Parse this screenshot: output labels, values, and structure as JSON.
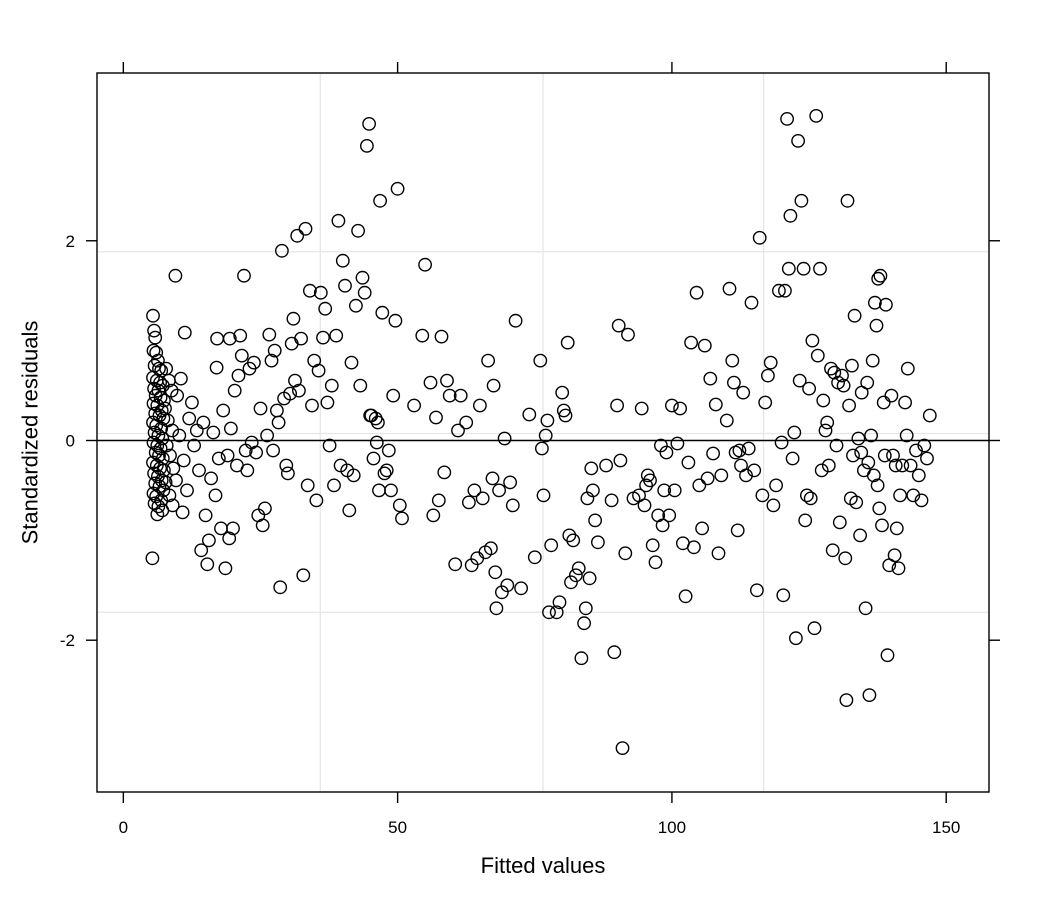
{
  "chart_data": {
    "type": "scatter",
    "title": "",
    "xlabel": "Fitted values",
    "ylabel": "Standardized residuals",
    "xlim": [
      -4.8,
      157.8
    ],
    "ylim": [
      -3.52,
      3.68
    ],
    "x_ticks": [
      0,
      50,
      100,
      150
    ],
    "x_tick_labels": [
      "0",
      "50",
      "100",
      "150"
    ],
    "y_ticks": [
      -2,
      0,
      2
    ],
    "y_tick_labels": [
      "-2",
      "0",
      "2"
    ],
    "reference_line_y": 0,
    "grid": {
      "x": [
        35.9,
        76.5,
        116.7
      ],
      "y": [
        -1.72,
        0.07,
        1.89
      ]
    },
    "points": [
      [
        5.4,
        1.25
      ],
      [
        5.6,
        1.1
      ],
      [
        5.8,
        1.03
      ],
      [
        5.5,
        0.9
      ],
      [
        6.0,
        0.88
      ],
      [
        6.3,
        0.8
      ],
      [
        5.7,
        0.75
      ],
      [
        6.5,
        0.72
      ],
      [
        6.9,
        0.7
      ],
      [
        5.4,
        0.63
      ],
      [
        6.1,
        0.6
      ],
      [
        6.7,
        0.58
      ],
      [
        7.2,
        0.55
      ],
      [
        5.6,
        0.52
      ],
      [
        6.4,
        0.5
      ],
      [
        5.9,
        0.45
      ],
      [
        6.8,
        0.43
      ],
      [
        7.4,
        0.4
      ],
      [
        5.5,
        0.37
      ],
      [
        6.2,
        0.35
      ],
      [
        7.0,
        0.3
      ],
      [
        5.8,
        0.27
      ],
      [
        6.6,
        0.25
      ],
      [
        7.3,
        0.22
      ],
      [
        5.4,
        0.18
      ],
      [
        6.0,
        0.15
      ],
      [
        6.9,
        0.12
      ],
      [
        5.7,
        0.08
      ],
      [
        6.4,
        0.05
      ],
      [
        7.1,
        0.02
      ],
      [
        5.5,
        -0.02
      ],
      [
        6.2,
        -0.05
      ],
      [
        6.8,
        -0.08
      ],
      [
        5.9,
        -0.12
      ],
      [
        6.5,
        -0.15
      ],
      [
        7.2,
        -0.18
      ],
      [
        5.4,
        -0.22
      ],
      [
        6.1,
        -0.25
      ],
      [
        6.7,
        -0.28
      ],
      [
        7.4,
        -0.3
      ],
      [
        5.6,
        -0.33
      ],
      [
        6.3,
        -0.36
      ],
      [
        7.0,
        -0.4
      ],
      [
        5.8,
        -0.43
      ],
      [
        6.6,
        -0.46
      ],
      [
        7.3,
        -0.5
      ],
      [
        5.5,
        -0.53
      ],
      [
        6.0,
        -0.56
      ],
      [
        6.9,
        -0.6
      ],
      [
        5.7,
        -0.63
      ],
      [
        6.4,
        -0.66
      ],
      [
        7.1,
        -0.7
      ],
      [
        6.2,
        -0.74
      ],
      [
        5.3,
        -1.18
      ],
      [
        7.8,
        0.72
      ],
      [
        8.3,
        0.6
      ],
      [
        8.8,
        0.5
      ],
      [
        7.6,
        0.32
      ],
      [
        8.1,
        0.2
      ],
      [
        8.9,
        0.1
      ],
      [
        7.9,
        -0.05
      ],
      [
        8.5,
        -0.15
      ],
      [
        9.1,
        -0.28
      ],
      [
        7.7,
        -0.42
      ],
      [
        8.4,
        -0.55
      ],
      [
        9.0,
        -0.65
      ],
      [
        9.6,
        -0.4
      ],
      [
        10.2,
        0.05
      ],
      [
        9.8,
        0.45
      ],
      [
        10.8,
        -0.72
      ],
      [
        9.5,
        1.65
      ],
      [
        10.5,
        0.62
      ],
      [
        11.2,
        1.08
      ],
      [
        11.0,
        -0.2
      ],
      [
        11.6,
        -0.5
      ],
      [
        12.0,
        0.22
      ],
      [
        12.5,
        0.38
      ],
      [
        12.9,
        -0.05
      ],
      [
        13.4,
        0.1
      ],
      [
        13.8,
        -0.3
      ],
      [
        14.2,
        -1.1
      ],
      [
        14.6,
        0.18
      ],
      [
        15.0,
        -0.75
      ],
      [
        15.3,
        -1.24
      ],
      [
        15.6,
        -1.0
      ],
      [
        16.0,
        -0.38
      ],
      [
        16.4,
        0.08
      ],
      [
        16.8,
        -0.55
      ],
      [
        17.1,
        1.02
      ],
      [
        17.0,
        0.73
      ],
      [
        17.4,
        -0.18
      ],
      [
        17.8,
        -0.88
      ],
      [
        18.2,
        0.3
      ],
      [
        18.6,
        -1.28
      ],
      [
        19.0,
        -0.15
      ],
      [
        19.3,
        -0.98
      ],
      [
        19.6,
        0.12
      ],
      [
        19.4,
        1.02
      ],
      [
        20.0,
        -0.88
      ],
      [
        20.3,
        0.5
      ],
      [
        20.7,
        -0.25
      ],
      [
        21.0,
        0.65
      ],
      [
        21.3,
        1.05
      ],
      [
        21.6,
        0.85
      ],
      [
        22.0,
        1.65
      ],
      [
        22.3,
        -0.1
      ],
      [
        22.6,
        -0.3
      ],
      [
        23.0,
        0.72
      ],
      [
        23.4,
        -0.02
      ],
      [
        23.8,
        0.78
      ],
      [
        24.2,
        -0.12
      ],
      [
        24.6,
        -0.75
      ],
      [
        25.0,
        0.32
      ],
      [
        25.4,
        -0.85
      ],
      [
        25.8,
        -0.68
      ],
      [
        26.2,
        0.05
      ],
      [
        26.6,
        1.06
      ],
      [
        27.0,
        0.8
      ],
      [
        27.3,
        -0.1
      ],
      [
        27.6,
        0.9
      ],
      [
        28.0,
        0.3
      ],
      [
        28.3,
        0.18
      ],
      [
        28.6,
        -1.47
      ],
      [
        28.9,
        1.9
      ],
      [
        29.3,
        0.42
      ],
      [
        29.7,
        -0.25
      ],
      [
        30.0,
        -0.33
      ],
      [
        30.4,
        0.47
      ],
      [
        30.7,
        0.97
      ],
      [
        31.0,
        1.22
      ],
      [
        31.3,
        0.6
      ],
      [
        31.7,
        2.05
      ],
      [
        32.0,
        0.5
      ],
      [
        32.4,
        1.02
      ],
      [
        32.8,
        -1.35
      ],
      [
        33.2,
        2.12
      ],
      [
        33.6,
        -0.45
      ],
      [
        34.0,
        1.5
      ],
      [
        34.4,
        0.35
      ],
      [
        34.8,
        0.8
      ],
      [
        35.2,
        -0.6
      ],
      [
        35.6,
        0.7
      ],
      [
        36.0,
        1.48
      ],
      [
        36.4,
        1.03
      ],
      [
        36.8,
        1.32
      ],
      [
        37.2,
        0.38
      ],
      [
        37.6,
        -0.05
      ],
      [
        38.0,
        0.55
      ],
      [
        38.4,
        -0.45
      ],
      [
        38.8,
        1.05
      ],
      [
        39.2,
        2.2
      ],
      [
        39.6,
        -0.25
      ],
      [
        40.0,
        1.8
      ],
      [
        40.4,
        1.55
      ],
      [
        40.8,
        -0.3
      ],
      [
        41.2,
        -0.7
      ],
      [
        41.6,
        0.78
      ],
      [
        42.0,
        -0.35
      ],
      [
        42.4,
        1.35
      ],
      [
        42.8,
        2.1
      ],
      [
        43.2,
        0.55
      ],
      [
        43.6,
        1.63
      ],
      [
        44.0,
        1.48
      ],
      [
        44.4,
        2.95
      ],
      [
        44.8,
        3.17
      ],
      [
        45.2,
        0.25
      ],
      [
        45.6,
        -0.18
      ],
      [
        46.0,
        0.22
      ],
      [
        46.4,
        0.18
      ],
      [
        46.8,
        2.4
      ],
      [
        47.2,
        1.28
      ],
      [
        47.6,
        -0.33
      ],
      [
        48.0,
        -0.3
      ],
      [
        48.4,
        -0.1
      ],
      [
        48.8,
        -0.5
      ],
      [
        49.2,
        0.45
      ],
      [
        49.6,
        1.2
      ],
      [
        50.0,
        2.52
      ],
      [
        50.4,
        -0.65
      ],
      [
        50.8,
        -0.78
      ],
      [
        46.2,
        -0.02
      ],
      [
        46.6,
        -0.5
      ],
      [
        45.0,
        0.25
      ],
      [
        53.0,
        0.35
      ],
      [
        54.5,
        1.05
      ],
      [
        55.0,
        1.76
      ],
      [
        56.0,
        0.58
      ],
      [
        57.0,
        0.23
      ],
      [
        56.5,
        -0.75
      ],
      [
        57.5,
        -0.6
      ],
      [
        58.0,
        1.04
      ],
      [
        58.5,
        -0.32
      ],
      [
        59.0,
        0.6
      ],
      [
        59.5,
        0.45
      ],
      [
        60.5,
        -1.24
      ],
      [
        61.0,
        0.1
      ],
      [
        61.5,
        0.45
      ],
      [
        62.5,
        0.18
      ],
      [
        63.0,
        -0.62
      ],
      [
        63.5,
        -1.25
      ],
      [
        64.0,
        -0.5
      ],
      [
        64.5,
        -1.18
      ],
      [
        65.0,
        0.35
      ],
      [
        65.5,
        -0.58
      ],
      [
        66.0,
        -1.12
      ],
      [
        66.5,
        0.8
      ],
      [
        67.0,
        -1.08
      ],
      [
        67.3,
        -0.38
      ],
      [
        67.5,
        0.55
      ],
      [
        67.8,
        -1.32
      ],
      [
        68.0,
        -1.68
      ],
      [
        68.5,
        -0.5
      ],
      [
        69.0,
        -1.52
      ],
      [
        69.5,
        0.02
      ],
      [
        70.0,
        -1.45
      ],
      [
        70.5,
        -0.42
      ],
      [
        71.0,
        -0.65
      ],
      [
        71.5,
        1.2
      ],
      [
        72.5,
        -1.48
      ],
      [
        74.0,
        0.26
      ],
      [
        75.0,
        -1.17
      ],
      [
        76.0,
        0.8
      ],
      [
        76.3,
        -0.08
      ],
      [
        76.6,
        -0.55
      ],
      [
        77.0,
        0.05
      ],
      [
        77.3,
        0.2
      ],
      [
        77.6,
        -1.72
      ],
      [
        78.0,
        -1.05
      ],
      [
        79.0,
        -1.72
      ],
      [
        79.5,
        -1.62
      ],
      [
        80.0,
        0.48
      ],
      [
        80.3,
        0.3
      ],
      [
        80.6,
        0.25
      ],
      [
        81.0,
        0.98
      ],
      [
        81.3,
        -0.95
      ],
      [
        81.6,
        -1.42
      ],
      [
        82.0,
        -1.0
      ],
      [
        82.5,
        -1.35
      ],
      [
        83.0,
        -1.28
      ],
      [
        83.5,
        -2.18
      ],
      [
        84.0,
        -1.83
      ],
      [
        84.3,
        -1.68
      ],
      [
        84.6,
        -0.58
      ],
      [
        85.0,
        -1.38
      ],
      [
        85.3,
        -0.28
      ],
      [
        85.6,
        -0.5
      ],
      [
        86.0,
        -0.8
      ],
      [
        86.5,
        -1.02
      ],
      [
        88.0,
        -0.25
      ],
      [
        89.0,
        -0.6
      ],
      [
        89.5,
        -2.12
      ],
      [
        90.0,
        0.35
      ],
      [
        90.3,
        1.15
      ],
      [
        90.6,
        -0.2
      ],
      [
        91.0,
        -3.08
      ],
      [
        91.5,
        -1.13
      ],
      [
        92.0,
        1.06
      ],
      [
        93.0,
        -0.58
      ],
      [
        94.0,
        -0.55
      ],
      [
        94.5,
        0.32
      ],
      [
        95.0,
        -0.65
      ],
      [
        95.3,
        -0.45
      ],
      [
        95.6,
        -0.35
      ],
      [
        96.0,
        -0.4
      ],
      [
        96.5,
        -1.05
      ],
      [
        97.0,
        -1.22
      ],
      [
        97.5,
        -0.75
      ],
      [
        98.0,
        -0.05
      ],
      [
        98.3,
        -0.85
      ],
      [
        98.6,
        -0.5
      ],
      [
        99.0,
        -0.12
      ],
      [
        99.5,
        -0.75
      ],
      [
        100.0,
        0.35
      ],
      [
        100.5,
        -0.5
      ],
      [
        101.0,
        -0.03
      ],
      [
        101.5,
        0.32
      ],
      [
        102.0,
        -1.03
      ],
      [
        102.5,
        -1.56
      ],
      [
        103.0,
        -0.22
      ],
      [
        103.5,
        0.98
      ],
      [
        104.0,
        -1.07
      ],
      [
        104.5,
        1.48
      ],
      [
        105.0,
        -0.45
      ],
      [
        105.5,
        -0.88
      ],
      [
        106.0,
        0.95
      ],
      [
        106.5,
        -0.38
      ],
      [
        107.0,
        0.62
      ],
      [
        107.5,
        -0.13
      ],
      [
        108.0,
        0.36
      ],
      [
        108.5,
        -1.13
      ],
      [
        109.0,
        -0.35
      ],
      [
        110.0,
        0.2
      ],
      [
        110.5,
        1.52
      ],
      [
        111.0,
        0.8
      ],
      [
        111.3,
        0.58
      ],
      [
        111.6,
        -0.12
      ],
      [
        112.0,
        -0.9
      ],
      [
        112.3,
        -0.1
      ],
      [
        112.6,
        -0.25
      ],
      [
        113.0,
        0.48
      ],
      [
        113.5,
        -0.35
      ],
      [
        114.0,
        -0.08
      ],
      [
        114.5,
        1.38
      ],
      [
        115.0,
        -0.3
      ],
      [
        115.5,
        -1.5
      ],
      [
        116.0,
        2.03
      ],
      [
        116.5,
        -0.55
      ],
      [
        117.0,
        0.38
      ],
      [
        117.5,
        0.65
      ],
      [
        118.0,
        0.78
      ],
      [
        118.5,
        -0.65
      ],
      [
        119.0,
        -0.45
      ],
      [
        119.5,
        1.5
      ],
      [
        120.0,
        -0.02
      ],
      [
        120.3,
        -1.55
      ],
      [
        120.6,
        1.5
      ],
      [
        121.0,
        3.22
      ],
      [
        121.3,
        1.72
      ],
      [
        121.6,
        2.25
      ],
      [
        122.0,
        -0.18
      ],
      [
        122.3,
        0.08
      ],
      [
        122.6,
        -1.98
      ],
      [
        123.0,
        3.0
      ],
      [
        123.3,
        0.6
      ],
      [
        123.6,
        2.4
      ],
      [
        124.0,
        1.72
      ],
      [
        124.3,
        -0.8
      ],
      [
        124.6,
        -0.55
      ],
      [
        125.0,
        0.52
      ],
      [
        125.3,
        -0.58
      ],
      [
        125.6,
        1.0
      ],
      [
        126.0,
        -1.88
      ],
      [
        126.3,
        3.25
      ],
      [
        126.6,
        0.85
      ],
      [
        127.0,
        1.72
      ],
      [
        127.3,
        -0.3
      ],
      [
        127.6,
        0.4
      ],
      [
        128.0,
        0.1
      ],
      [
        128.3,
        0.18
      ],
      [
        128.6,
        -0.25
      ],
      [
        129.0,
        0.72
      ],
      [
        129.3,
        -1.1
      ],
      [
        129.6,
        0.68
      ],
      [
        130.0,
        -0.05
      ],
      [
        130.3,
        0.58
      ],
      [
        130.6,
        -0.82
      ],
      [
        131.0,
        0.65
      ],
      [
        131.3,
        0.55
      ],
      [
        131.6,
        -1.18
      ],
      [
        132.0,
        2.4
      ],
      [
        132.3,
        0.35
      ],
      [
        132.6,
        -0.58
      ],
      [
        133.0,
        -0.15
      ],
      [
        133.3,
        1.25
      ],
      [
        133.6,
        -0.62
      ],
      [
        134.0,
        0.02
      ],
      [
        134.3,
        -0.95
      ],
      [
        134.6,
        0.48
      ],
      [
        135.0,
        -0.3
      ],
      [
        135.3,
        -1.68
      ],
      [
        135.6,
        0.58
      ],
      [
        136.0,
        -2.55
      ],
      [
        136.3,
        0.05
      ],
      [
        136.6,
        0.8
      ],
      [
        137.0,
        1.38
      ],
      [
        137.3,
        1.15
      ],
      [
        137.6,
        1.62
      ],
      [
        138.0,
        1.65
      ],
      [
        138.3,
        -0.85
      ],
      [
        138.6,
        0.38
      ],
      [
        139.0,
        1.36
      ],
      [
        139.3,
        -2.15
      ],
      [
        139.6,
        -1.25
      ],
      [
        140.0,
        0.45
      ],
      [
        140.3,
        -0.15
      ],
      [
        140.6,
        -1.15
      ],
      [
        141.0,
        -0.88
      ],
      [
        141.3,
        -1.28
      ],
      [
        141.6,
        -0.55
      ],
      [
        142.0,
        -0.25
      ],
      [
        142.5,
        0.38
      ],
      [
        143.0,
        0.72
      ],
      [
        143.5,
        -0.25
      ],
      [
        144.0,
        -0.55
      ],
      [
        144.5,
        -0.1
      ],
      [
        145.0,
        -0.35
      ],
      [
        145.5,
        -0.6
      ],
      [
        146.0,
        -0.05
      ],
      [
        146.5,
        -0.18
      ],
      [
        147.0,
        0.25
      ],
      [
        134.5,
        -0.12
      ],
      [
        135.8,
        -0.22
      ],
      [
        136.8,
        -0.35
      ],
      [
        137.5,
        -0.45
      ],
      [
        138.8,
        -0.15
      ],
      [
        140.8,
        -0.25
      ],
      [
        142.8,
        0.05
      ],
      [
        132.8,
        0.75
      ],
      [
        131.8,
        -2.6
      ],
      [
        137.8,
        -0.68
      ]
    ]
  }
}
